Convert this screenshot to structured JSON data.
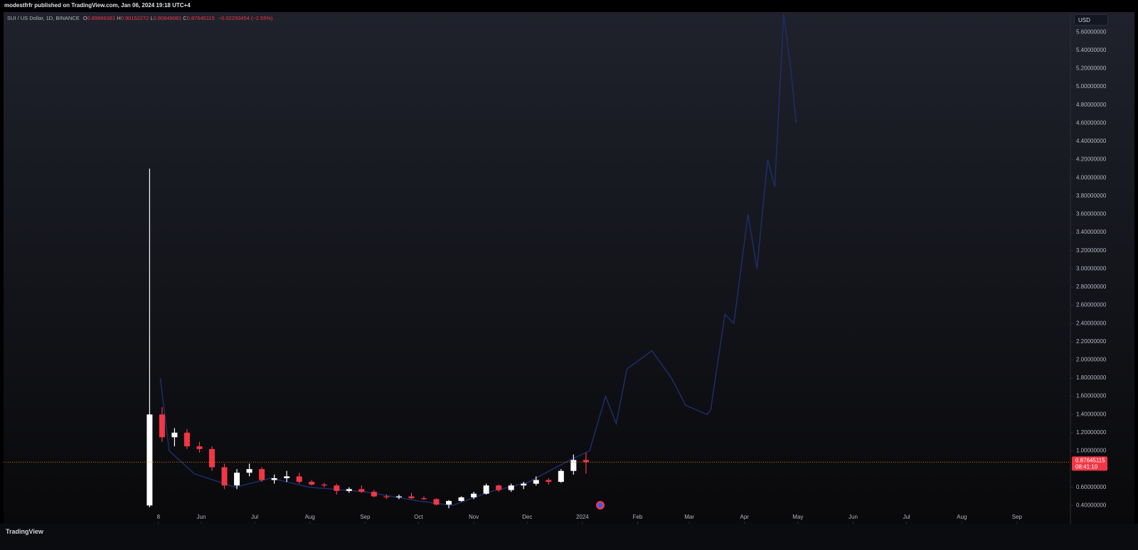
{
  "header": {
    "publisher": "modestfrfr published on TradingView.com, Jan 06, 2024 19:18 UTC+4",
    "symbol": "SUI / US Dollar, 1D, BINANCE",
    "ohlc": [
      {
        "key": "O",
        "value": "0.89966381"
      },
      {
        "key": "H",
        "value": "0.90152272"
      },
      {
        "key": "L",
        "value": "0.80849081"
      },
      {
        "key": "C",
        "value": "0.87645115"
      }
    ],
    "change": "−0.02293454 (−2.55%)",
    "currency": "USD"
  },
  "chart_data": {
    "type": "candlestick",
    "xlim": [
      "2023-02-10",
      "2024-10-01"
    ],
    "ylim": [
      0.2,
      5.82
    ],
    "xticks": [
      {
        "value": "2023-05-08",
        "label": "8"
      },
      {
        "value": "2023-06-01",
        "label": "Jun"
      },
      {
        "value": "2023-07-01",
        "label": "Jul"
      },
      {
        "value": "2023-08-01",
        "label": "Aug"
      },
      {
        "value": "2023-09-01",
        "label": "Sep"
      },
      {
        "value": "2023-10-01",
        "label": "Oct"
      },
      {
        "value": "2023-11-01",
        "label": "Nov"
      },
      {
        "value": "2023-12-01",
        "label": "Dec"
      },
      {
        "value": "2024-01-01",
        "label": "2024"
      },
      {
        "value": "2024-02-01",
        "label": "Feb"
      },
      {
        "value": "2024-03-01",
        "label": "Mar"
      },
      {
        "value": "2024-04-01",
        "label": "Apr"
      },
      {
        "value": "2024-05-01",
        "label": "May"
      },
      {
        "value": "2024-06-01",
        "label": "Jun"
      },
      {
        "value": "2024-07-01",
        "label": "Jul"
      },
      {
        "value": "2024-08-01",
        "label": "Aug"
      },
      {
        "value": "2024-09-01",
        "label": "Sep"
      }
    ],
    "yticks": [
      {
        "value": 0.4,
        "label": "0.40000000"
      },
      {
        "value": 0.6,
        "label": "0.60000000"
      },
      {
        "value": 0.8,
        "label": "0.80000000"
      },
      {
        "value": 1.0,
        "label": "1.00000000"
      },
      {
        "value": 1.2,
        "label": "1.20000000"
      },
      {
        "value": 1.4,
        "label": "1.40000000"
      },
      {
        "value": 1.6,
        "label": "1.60000000"
      },
      {
        "value": 1.8,
        "label": "1.80000000"
      },
      {
        "value": 2.0,
        "label": "2.00000000"
      },
      {
        "value": 2.2,
        "label": "2.20000000"
      },
      {
        "value": 2.4,
        "label": "2.40000000"
      },
      {
        "value": 2.6,
        "label": "2.60000000"
      },
      {
        "value": 2.8,
        "label": "2.80000000"
      },
      {
        "value": 3.0,
        "label": "3.00000000"
      },
      {
        "value": 3.2,
        "label": "3.20000000"
      },
      {
        "value": 3.4,
        "label": "3.40000000"
      },
      {
        "value": 3.6,
        "label": "3.60000000"
      },
      {
        "value": 3.8,
        "label": "3.80000000"
      },
      {
        "value": 4.0,
        "label": "4.00000000"
      },
      {
        "value": 4.2,
        "label": "4.20000000"
      },
      {
        "value": 4.4,
        "label": "4.40000000"
      },
      {
        "value": 4.6,
        "label": "4.60000000"
      },
      {
        "value": 4.8,
        "label": "4.80000000"
      },
      {
        "value": 5.0,
        "label": "5.00000000"
      },
      {
        "value": 5.2,
        "label": "5.20000000"
      },
      {
        "value": 5.4,
        "label": "5.40000000"
      },
      {
        "value": 5.6,
        "label": "5.60000000"
      }
    ],
    "up_color": "#ffffff",
    "down_color": "#f23645",
    "x": [
      "2023-05-03",
      "2023-05-10",
      "2023-05-17",
      "2023-05-24",
      "2023-05-31",
      "2023-06-07",
      "2023-06-14",
      "2023-06-21",
      "2023-06-28",
      "2023-07-05",
      "2023-07-12",
      "2023-07-19",
      "2023-07-26",
      "2023-08-02",
      "2023-08-09",
      "2023-08-16",
      "2023-08-23",
      "2023-08-30",
      "2023-09-06",
      "2023-09-13",
      "2023-09-20",
      "2023-09-27",
      "2023-10-04",
      "2023-10-11",
      "2023-10-18",
      "2023-10-25",
      "2023-11-01",
      "2023-11-08",
      "2023-11-15",
      "2023-11-22",
      "2023-11-29",
      "2023-12-06",
      "2023-12-13",
      "2023-12-20",
      "2023-12-27",
      "2024-01-03"
    ],
    "open": [
      0.4,
      1.4,
      1.15,
      1.2,
      1.05,
      1.02,
      0.82,
      0.62,
      0.76,
      0.8,
      0.68,
      0.7,
      0.72,
      0.66,
      0.63,
      0.62,
      0.56,
      0.58,
      0.55,
      0.5,
      0.49,
      0.5,
      0.48,
      0.47,
      0.41,
      0.45,
      0.49,
      0.53,
      0.62,
      0.57,
      0.62,
      0.64,
      0.68,
      0.66,
      0.78,
      0.9
    ],
    "high": [
      4.1,
      1.48,
      1.25,
      1.24,
      1.1,
      1.05,
      0.86,
      0.8,
      0.86,
      0.82,
      0.74,
      0.78,
      0.76,
      0.68,
      0.65,
      0.64,
      0.6,
      0.62,
      0.57,
      0.52,
      0.52,
      0.54,
      0.5,
      0.48,
      0.46,
      0.5,
      0.55,
      0.64,
      0.63,
      0.64,
      0.66,
      0.72,
      0.7,
      0.8,
      0.96,
      0.98
    ],
    "low": [
      0.38,
      1.1,
      1.05,
      1.02,
      0.98,
      0.78,
      0.58,
      0.58,
      0.72,
      0.66,
      0.64,
      0.66,
      0.64,
      0.62,
      0.6,
      0.52,
      0.54,
      0.54,
      0.49,
      0.47,
      0.47,
      0.47,
      0.46,
      0.4,
      0.37,
      0.44,
      0.47,
      0.52,
      0.55,
      0.55,
      0.58,
      0.62,
      0.63,
      0.65,
      0.74,
      0.75
    ],
    "close": [
      1.4,
      1.15,
      1.2,
      1.05,
      1.02,
      0.82,
      0.62,
      0.76,
      0.8,
      0.68,
      0.7,
      0.72,
      0.66,
      0.63,
      0.62,
      0.56,
      0.58,
      0.55,
      0.5,
      0.49,
      0.5,
      0.48,
      0.47,
      0.41,
      0.45,
      0.49,
      0.53,
      0.62,
      0.57,
      0.62,
      0.64,
      0.68,
      0.66,
      0.78,
      0.9,
      0.8765
    ],
    "overlay": {
      "color": "#1c2e6b",
      "x": [
        "2023-05-09",
        "2023-05-14",
        "2023-05-28",
        "2023-06-20",
        "2023-07-10",
        "2023-08-01",
        "2023-09-01",
        "2023-10-01",
        "2023-10-20",
        "2023-11-10",
        "2023-12-01",
        "2023-12-25",
        "2024-01-05",
        "2024-01-14",
        "2024-01-20",
        "2024-01-26",
        "2024-02-09",
        "2024-02-20",
        "2024-02-28",
        "2024-03-11",
        "2024-03-13",
        "2024-03-21",
        "2024-03-26",
        "2024-04-03",
        "2024-04-08",
        "2024-04-14",
        "2024-04-18",
        "2024-04-23",
        "2024-04-27",
        "2024-04-30"
      ],
      "values": [
        1.8,
        1.0,
        0.75,
        0.6,
        0.7,
        0.6,
        0.55,
        0.45,
        0.4,
        0.55,
        0.65,
        0.9,
        1.0,
        1.6,
        1.3,
        1.9,
        2.1,
        1.8,
        1.5,
        1.4,
        1.45,
        2.5,
        2.4,
        3.6,
        3.0,
        4.2,
        3.9,
        5.8,
        5.2,
        4.6
      ]
    },
    "last_price": 0.87645115,
    "countdown": "08:41:10"
  },
  "footer": {
    "brand": "TradingView"
  }
}
